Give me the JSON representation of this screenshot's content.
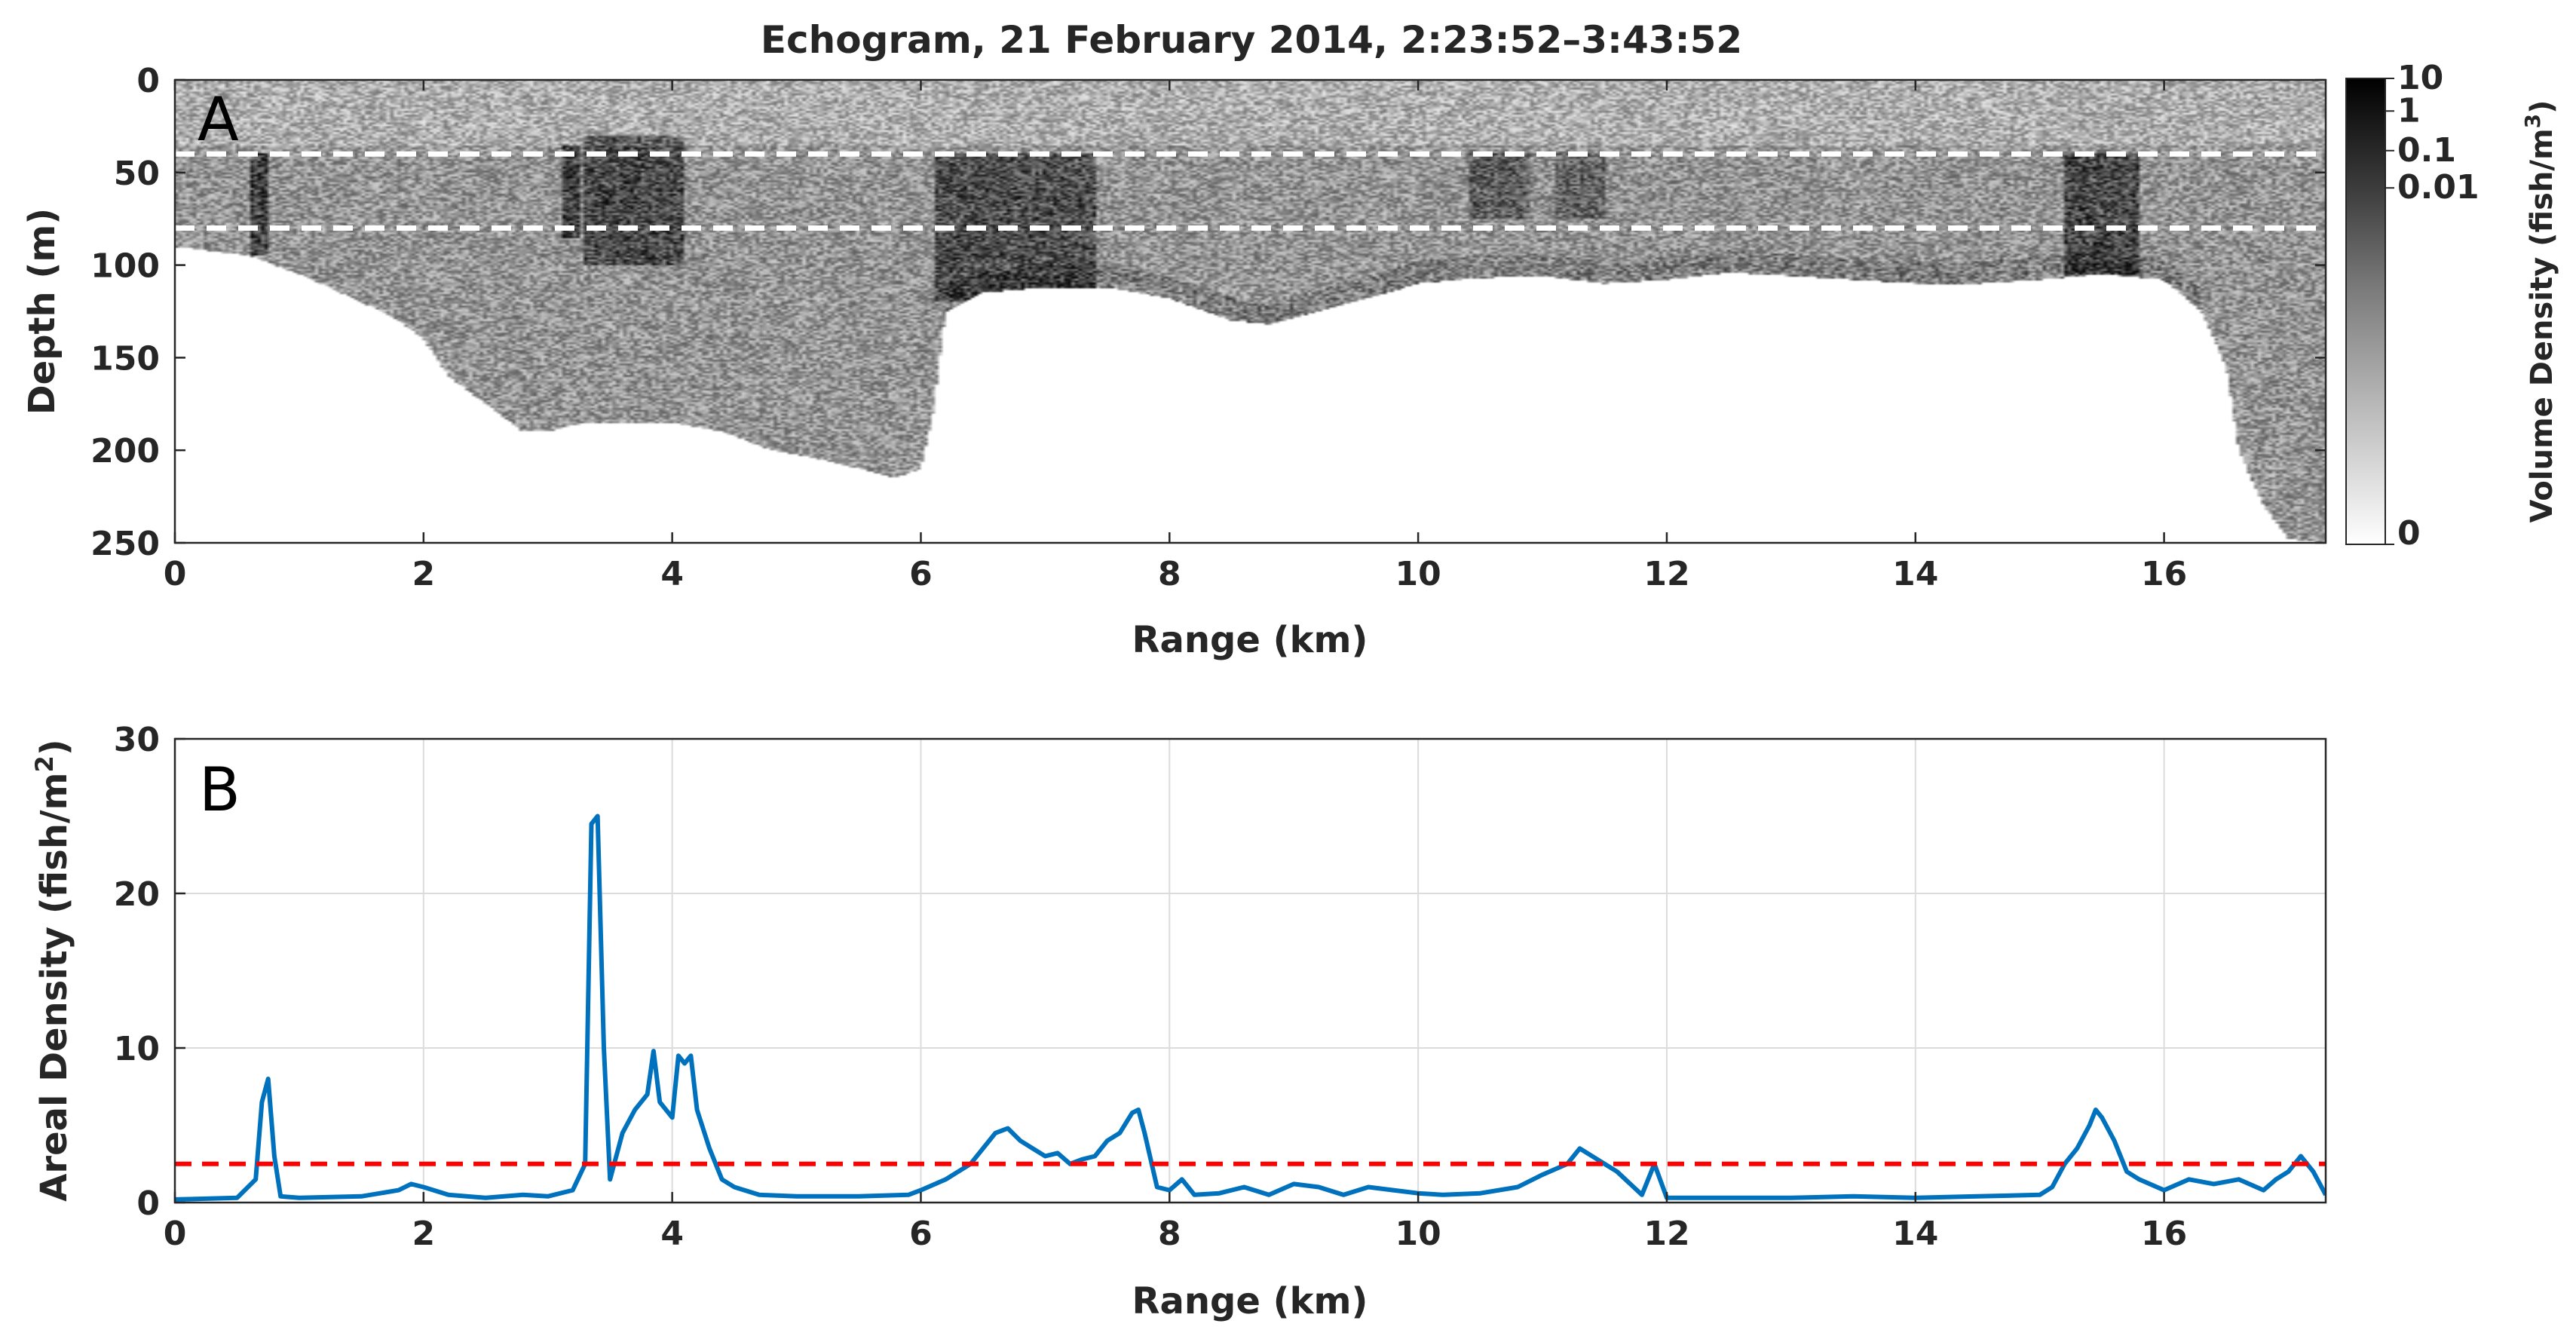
{
  "title": "Echogram, 21 February 2014, 2:23:52–3:43:52",
  "chart_data": [
    {
      "type": "heatmap",
      "panel_label": "A",
      "xlabel": "Range (km)",
      "ylabel": "Depth (m)",
      "xlim": [
        0,
        17.3
      ],
      "ylim": [
        0,
        250
      ],
      "y_reversed": true,
      "xticks": [
        0,
        2,
        4,
        6,
        8,
        10,
        12,
        14,
        16
      ],
      "yticks": [
        0,
        50,
        100,
        150,
        200,
        250
      ],
      "colormap": "gray-reversed",
      "colorbar": {
        "label": "Volume Density (fish/m³)",
        "label_main": "Volume Density (fish/m",
        "label_sup": "3",
        "label_end": ")",
        "ticks": [
          "10",
          "1",
          "0.1",
          "0.01",
          "0"
        ],
        "scale": "log"
      },
      "reference_depths_m": [
        40,
        80
      ],
      "reference_color": "#ffffff",
      "seafloor_depth_profile": {
        "x": [
          0,
          0.6,
          1.0,
          1.5,
          1.8,
          2.0,
          2.2,
          2.5,
          2.8,
          3.0,
          3.3,
          3.5,
          4.0,
          4.4,
          4.8,
          5.2,
          5.5,
          5.8,
          6.0,
          6.1,
          6.2,
          6.5,
          7.0,
          7.5,
          8.0,
          8.5,
          8.8,
          9.2,
          9.6,
          10.0,
          10.5,
          11.0,
          11.5,
          12.0,
          12.5,
          13.0,
          13.5,
          14.0,
          14.5,
          15.0,
          15.5,
          16.0,
          16.3,
          16.5,
          16.6,
          16.8,
          17.0,
          17.3
        ],
        "depth": [
          90,
          95,
          105,
          120,
          130,
          140,
          160,
          175,
          190,
          190,
          185,
          185,
          185,
          190,
          200,
          205,
          210,
          215,
          210,
          180,
          125,
          115,
          112,
          112,
          118,
          130,
          132,
          125,
          118,
          110,
          107,
          106,
          110,
          108,
          104,
          106,
          108,
          110,
          110,
          108,
          105,
          108,
          125,
          155,
          200,
          230,
          248,
          250
        ]
      },
      "fish_aggregations": [
        {
          "x_start": 0.6,
          "x_end": 0.75,
          "depth_top": 40,
          "depth_bottom": 95,
          "intensity": 0.8
        },
        {
          "x_start": 3.1,
          "x_end": 3.25,
          "depth_top": 35,
          "depth_bottom": 85,
          "intensity": 0.85
        },
        {
          "x_start": 3.3,
          "x_end": 4.1,
          "depth_top": 30,
          "depth_bottom": 100,
          "intensity": 0.7
        },
        {
          "x_start": 6.1,
          "x_end": 7.4,
          "depth_top": 40,
          "depth_bottom": 120,
          "intensity": 0.65
        },
        {
          "x_start": 10.4,
          "x_end": 10.9,
          "depth_top": 40,
          "depth_bottom": 75,
          "intensity": 0.5
        },
        {
          "x_start": 11.1,
          "x_end": 11.5,
          "depth_top": 40,
          "depth_bottom": 75,
          "intensity": 0.45
        },
        {
          "x_start": 15.2,
          "x_end": 15.8,
          "depth_top": 40,
          "depth_bottom": 105,
          "intensity": 0.7
        }
      ]
    },
    {
      "type": "line",
      "panel_label": "B",
      "xlabel": "Range (km)",
      "ylabel": "Areal Density (fish/m²)",
      "ylabel_main": "Areal Density (fish/m",
      "ylabel_sup": "2",
      "ylabel_end": ")",
      "xlim": [
        0,
        17.3
      ],
      "ylim": [
        0,
        30
      ],
      "xticks": [
        0,
        2,
        4,
        6,
        8,
        10,
        12,
        14,
        16
      ],
      "yticks": [
        0,
        10,
        20,
        30
      ],
      "grid": true,
      "series": [
        {
          "color": "#0072BD",
          "x": [
            0,
            0.5,
            0.65,
            0.7,
            0.75,
            0.8,
            0.85,
            1.0,
            1.5,
            1.8,
            1.9,
            2.0,
            2.2,
            2.5,
            2.8,
            3.0,
            3.2,
            3.3,
            3.35,
            3.4,
            3.45,
            3.5,
            3.6,
            3.7,
            3.8,
            3.85,
            3.9,
            4.0,
            4.05,
            4.1,
            4.15,
            4.2,
            4.3,
            4.4,
            4.5,
            4.7,
            5.0,
            5.5,
            5.9,
            6.0,
            6.2,
            6.4,
            6.5,
            6.6,
            6.7,
            6.8,
            6.9,
            7.0,
            7.1,
            7.2,
            7.3,
            7.4,
            7.5,
            7.6,
            7.7,
            7.75,
            7.8,
            7.9,
            8.0,
            8.1,
            8.2,
            8.4,
            8.6,
            8.8,
            9.0,
            9.2,
            9.4,
            9.6,
            9.8,
            10.0,
            10.2,
            10.5,
            10.8,
            11.0,
            11.2,
            11.3,
            11.4,
            11.5,
            11.6,
            11.8,
            11.9,
            12.0,
            12.5,
            13.0,
            13.5,
            14.0,
            14.5,
            15.0,
            15.1,
            15.2,
            15.3,
            15.4,
            15.45,
            15.5,
            15.6,
            15.7,
            15.8,
            16.0,
            16.2,
            16.4,
            16.6,
            16.8,
            16.9,
            17.0,
            17.1,
            17.2,
            17.3
          ],
          "y": [
            0.2,
            0.3,
            1.5,
            6.5,
            8.0,
            3.0,
            0.4,
            0.3,
            0.4,
            0.8,
            1.2,
            1.0,
            0.5,
            0.3,
            0.5,
            0.4,
            0.8,
            2.5,
            24.5,
            25.0,
            10.0,
            1.5,
            4.5,
            6.0,
            7.0,
            9.8,
            6.5,
            5.5,
            9.5,
            9.0,
            9.5,
            6.0,
            3.5,
            1.5,
            1.0,
            0.5,
            0.4,
            0.4,
            0.5,
            0.8,
            1.5,
            2.5,
            3.5,
            4.5,
            4.8,
            4.0,
            3.5,
            3.0,
            3.2,
            2.5,
            2.8,
            3.0,
            4.0,
            4.5,
            5.8,
            6.0,
            4.5,
            1.0,
            0.8,
            1.5,
            0.5,
            0.6,
            1.0,
            0.5,
            1.2,
            1.0,
            0.5,
            1.0,
            0.8,
            0.6,
            0.5,
            0.6,
            1.0,
            1.8,
            2.5,
            3.5,
            3.0,
            2.5,
            2.0,
            0.5,
            2.5,
            0.3,
            0.3,
            0.3,
            0.4,
            0.3,
            0.4,
            0.5,
            1.0,
            2.5,
            3.5,
            5.0,
            6.0,
            5.5,
            4.0,
            2.0,
            1.5,
            0.8,
            1.5,
            1.2,
            1.5,
            0.8,
            1.5,
            2.0,
            3.0,
            2.0,
            0.5
          ]
        }
      ],
      "threshold": {
        "y": 2.5,
        "color": "#ff0000",
        "style": "dashed"
      }
    }
  ]
}
